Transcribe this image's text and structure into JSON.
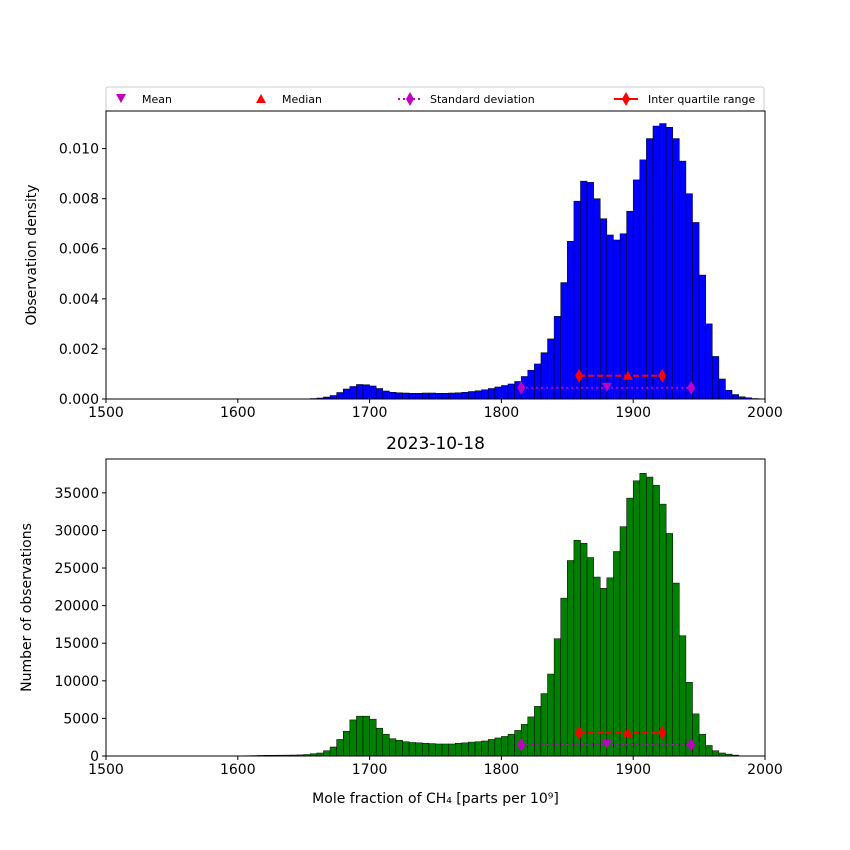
{
  "legend": {
    "items": [
      {
        "label": "Mean",
        "marker": "triangle-down",
        "color": "#bf00bf",
        "line": "none"
      },
      {
        "label": "Median",
        "marker": "triangle-up",
        "color": "#ff0000",
        "line": "none"
      },
      {
        "label": "Standard deviation",
        "marker": "diamond",
        "color": "#bf00bf",
        "line": "dotted"
      },
      {
        "label": "Inter quartile range",
        "marker": "diamond",
        "color": "#ff0000",
        "line": "solid"
      }
    ]
  },
  "chart_data": [
    {
      "type": "bar",
      "title": "",
      "xlabel": "",
      "ylabel": "Observation density",
      "xlim": [
        1500,
        2000
      ],
      "ylim": [
        0,
        0.0115
      ],
      "xticks": [
        "1500",
        "1600",
        "1700",
        "1800",
        "1900",
        "2000"
      ],
      "yticks": [
        "0.000",
        "0.002",
        "0.004",
        "0.006",
        "0.008",
        "0.010"
      ],
      "bar_color": "#0000ff",
      "bin_start": 1645,
      "bin_width": 5,
      "values": [
        1e-05,
        1e-05,
        2e-05,
        4e-05,
        8e-05,
        0.00014,
        0.00026,
        0.0004,
        0.0005,
        0.00058,
        0.00057,
        0.00052,
        0.00042,
        0.00032,
        0.00027,
        0.00025,
        0.00024,
        0.00023,
        0.00023,
        0.00024,
        0.00024,
        0.00023,
        0.00023,
        0.00024,
        0.00025,
        0.00027,
        0.0003,
        0.00033,
        0.00037,
        0.00042,
        0.00048,
        0.00054,
        0.0006,
        0.0007,
        0.0009,
        0.00115,
        0.0014,
        0.00185,
        0.0024,
        0.0033,
        0.00465,
        0.0063,
        0.0079,
        0.0087,
        0.00865,
        0.008,
        0.0072,
        0.00655,
        0.00635,
        0.0066,
        0.0075,
        0.00875,
        0.00955,
        0.0104,
        0.0109,
        0.011,
        0.01085,
        0.0104,
        0.0095,
        0.0082,
        0.00705,
        0.00495,
        0.003,
        0.0017,
        0.0008,
        0.00035,
        0.00018,
        9e-05,
        5e-05,
        2e-05,
        1e-05
      ],
      "stats": {
        "mean": 1880,
        "median": 1896,
        "std_range": [
          1815,
          1944
        ],
        "iqr_range": [
          1859,
          1922
        ],
        "iqr_level": 0.00093,
        "std_level": 0.00045
      }
    },
    {
      "type": "bar",
      "title": "2023-10-18",
      "xlabel": "Mole fraction of CH₄ [parts per 10⁹]",
      "ylabel": "Number of observations",
      "xlim": [
        1500,
        2000
      ],
      "ylim": [
        0,
        39500
      ],
      "xticks": [
        "1500",
        "1600",
        "1700",
        "1800",
        "1900",
        "2000"
      ],
      "yticks": [
        "0",
        "5000",
        "10000",
        "15000",
        "20000",
        "25000",
        "30000",
        "35000"
      ],
      "bar_color": "#008000",
      "bin_start": 1605,
      "bin_width": 5,
      "values": [
        40,
        60,
        80,
        100,
        100,
        110,
        120,
        130,
        150,
        200,
        300,
        400,
        700,
        1200,
        2200,
        3300,
        4800,
        5300,
        5300,
        4900,
        3700,
        2900,
        2300,
        2100,
        1900,
        1800,
        1750,
        1700,
        1650,
        1600,
        1600,
        1600,
        1700,
        1750,
        1850,
        1900,
        2000,
        2200,
        2400,
        2600,
        2900,
        3400,
        4200,
        5200,
        6600,
        8300,
        10900,
        15600,
        21000,
        26000,
        28700,
        28300,
        26400,
        23800,
        22300,
        23700,
        27200,
        30500,
        34300,
        36600,
        37600,
        37100,
        36000,
        33500,
        29600,
        23000,
        16000,
        9800,
        5600,
        2900,
        1400,
        700,
        400,
        250,
        120
      ],
      "stats": {
        "mean": 1880,
        "median": 1896,
        "std_range": [
          1815,
          1944
        ],
        "iqr_range": [
          1859,
          1922
        ],
        "iqr_level": 3100,
        "std_level": 1500
      }
    }
  ]
}
